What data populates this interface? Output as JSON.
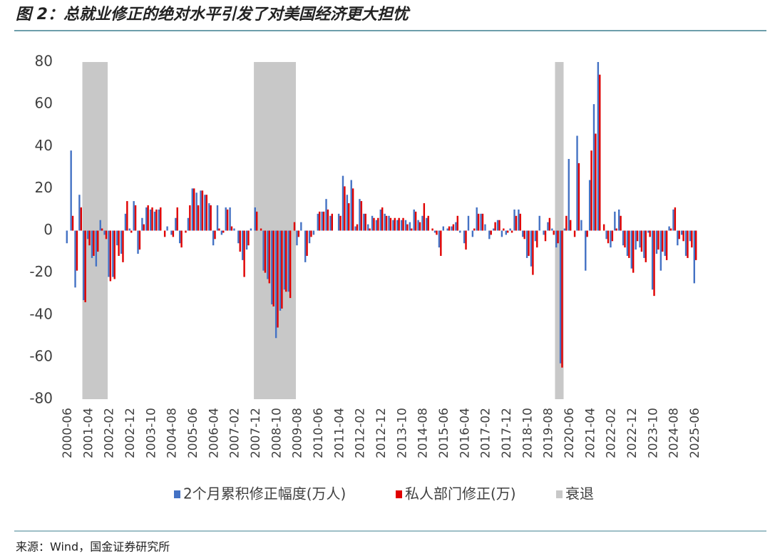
{
  "chart_data": {
    "type": "bar",
    "title": "图 2：总就业修正的绝对水平引发了对美国经济更大担忧",
    "source": "来源：Wind，国金证券研究所",
    "categories": [
      "2000-06",
      null,
      null,
      null,
      null,
      "2001-04",
      null,
      null,
      null,
      null,
      "2002-02",
      null,
      null,
      null,
      null,
      "2002-12",
      null,
      null,
      null,
      null,
      "2003-10",
      null,
      null,
      null,
      null,
      "2004-08",
      null,
      null,
      null,
      null,
      "2005-06",
      null,
      null,
      null,
      null,
      "2006-04",
      null,
      null,
      null,
      null,
      "2007-02",
      null,
      null,
      null,
      null,
      "2007-12",
      null,
      null,
      null,
      null,
      "2008-10",
      null,
      null,
      null,
      null,
      "2009-08",
      null,
      null,
      null,
      null,
      "2010-06",
      null,
      null,
      null,
      null,
      "2011-04",
      null,
      null,
      null,
      null,
      "2012-02",
      null,
      null,
      null,
      null,
      "2012-12",
      null,
      null,
      null,
      null,
      "2013-10",
      null,
      null,
      null,
      null,
      "2014-08",
      null,
      null,
      null,
      null,
      "2015-06",
      null,
      null,
      null,
      null,
      "2016-04",
      null,
      null,
      null,
      null,
      "2017-02",
      null,
      null,
      null,
      null,
      "2017-12",
      null,
      null,
      null,
      null,
      "2018-10",
      null,
      null,
      null,
      null,
      "2019-08",
      null,
      null,
      null,
      null,
      "2020-06",
      null,
      null,
      null,
      null,
      "2021-04",
      null,
      null,
      null,
      null,
      "2022-02",
      null,
      null,
      null,
      null,
      "2022-12",
      null,
      null,
      null,
      null,
      "2023-10",
      null,
      null,
      null,
      null,
      "2024-08",
      null,
      null,
      null,
      null,
      "2025-06"
    ],
    "series": [
      {
        "name": "2个月累积修正幅度(万人)",
        "color": "#4472c4",
        "values": [
          -6,
          38,
          -27,
          17,
          -33,
          -4,
          -13,
          -17,
          5,
          -2,
          -22,
          -22,
          -7,
          -11,
          8,
          1,
          14,
          -11,
          6,
          11,
          10,
          9,
          10,
          0,
          2,
          -2,
          6,
          -6,
          0,
          6,
          20,
          18,
          19,
          17,
          13,
          -7,
          12,
          -2,
          11,
          11,
          1,
          -6,
          -14,
          -9,
          1,
          11,
          0,
          -19,
          -23,
          -35,
          -51,
          -38,
          -28,
          -29,
          0,
          -7,
          4,
          -15,
          -6,
          -2,
          8,
          9,
          15,
          7,
          0,
          8,
          26,
          17,
          24,
          2,
          15,
          8,
          3,
          7,
          5,
          10,
          8,
          7,
          5,
          5,
          5,
          5,
          4,
          10,
          5,
          7,
          6,
          0,
          -1,
          -8,
          2,
          1,
          2,
          4,
          -1,
          -6,
          7,
          -3,
          11,
          8,
          3,
          -4,
          1,
          5,
          -3,
          -2,
          1,
          10,
          10,
          -3,
          -13,
          -17,
          -5,
          7,
          -2,
          4,
          1,
          -8,
          -63,
          1,
          34,
          0,
          45,
          5,
          -19,
          24,
          60,
          80,
          0,
          -4,
          -8,
          9,
          10,
          -7,
          -12,
          -18,
          -9,
          -8,
          -13,
          -1,
          -28,
          -11,
          -19,
          -12,
          2,
          10,
          -7,
          -2,
          -12,
          -5,
          -25
        ]
      },
      {
        "name": "私人部门修正(万)",
        "color": "#e00000",
        "values": [
          0,
          7,
          -19,
          11,
          -34,
          -7,
          -12,
          -10,
          1,
          -4,
          -24,
          -23,
          -12,
          -15,
          14,
          -1,
          12,
          -9,
          3,
          12,
          11,
          10,
          11,
          -3,
          0,
          -3,
          11,
          -8,
          -1,
          12,
          20,
          12,
          19,
          17,
          12,
          -4,
          1,
          -1,
          10,
          2,
          0,
          -10,
          -22,
          -7,
          0,
          9,
          1,
          -20,
          -25,
          -36,
          -46,
          -37,
          -29,
          -32,
          4,
          -3,
          0,
          -12,
          -3,
          0,
          9,
          9,
          10,
          8,
          0,
          7,
          21,
          13,
          20,
          3,
          14,
          8,
          1,
          6,
          6,
          11,
          7,
          6,
          6,
          6,
          6,
          3,
          1,
          9,
          4,
          13,
          7,
          1,
          -2,
          -12,
          0,
          2,
          3,
          7,
          0,
          -9,
          0,
          1,
          8,
          8,
          0,
          -2,
          4,
          5,
          1,
          -1,
          -1,
          7,
          8,
          -4,
          -12,
          -21,
          -8,
          0,
          -5,
          6,
          -2,
          -6,
          -65,
          7,
          5,
          -3,
          32,
          0,
          -3,
          38,
          46,
          74,
          3,
          -6,
          -5,
          1,
          7,
          -8,
          -13,
          -20,
          -5,
          -10,
          -15,
          -3,
          -31,
          -9,
          -10,
          -14,
          1,
          11,
          -4,
          -5,
          -13,
          -8,
          -14
        ]
      },
      {
        "name": "衰退",
        "color": "#c8c8c8",
        "band": true,
        "values": [
          null,
          null,
          null,
          null,
          80,
          80,
          80,
          80,
          80,
          80,
          null,
          null,
          null,
          null,
          null,
          null,
          null,
          null,
          null,
          null,
          null,
          null,
          null,
          null,
          null,
          null,
          null,
          null,
          null,
          null,
          null,
          null,
          null,
          null,
          null,
          null,
          null,
          null,
          null,
          null,
          null,
          null,
          null,
          null,
          null,
          80,
          80,
          80,
          80,
          80,
          80,
          80,
          80,
          80,
          80,
          null,
          null,
          null,
          null,
          null,
          null,
          null,
          null,
          null,
          null,
          null,
          null,
          null,
          null,
          null,
          null,
          null,
          null,
          null,
          null,
          null,
          null,
          null,
          null,
          null,
          null,
          null,
          null,
          null,
          null,
          null,
          null,
          null,
          null,
          null,
          null,
          null,
          null,
          null,
          null,
          null,
          null,
          null,
          null,
          null,
          null,
          null,
          null,
          null,
          null,
          null,
          null,
          null,
          null,
          null,
          null,
          null,
          null,
          null,
          null,
          null,
          null,
          80,
          80,
          null,
          null,
          null,
          null,
          null,
          null,
          null,
          null,
          null,
          null,
          null,
          null,
          null,
          null,
          null,
          null,
          null,
          null,
          null,
          null,
          null,
          null,
          null,
          null,
          null,
          null,
          null,
          null,
          null,
          null,
          null,
          null
        ]
      }
    ],
    "ylim": [
      -80,
      80
    ],
    "yticks": [
      -80,
      -60,
      -40,
      -20,
      0,
      20,
      40,
      60,
      80
    ],
    "grid": false
  }
}
